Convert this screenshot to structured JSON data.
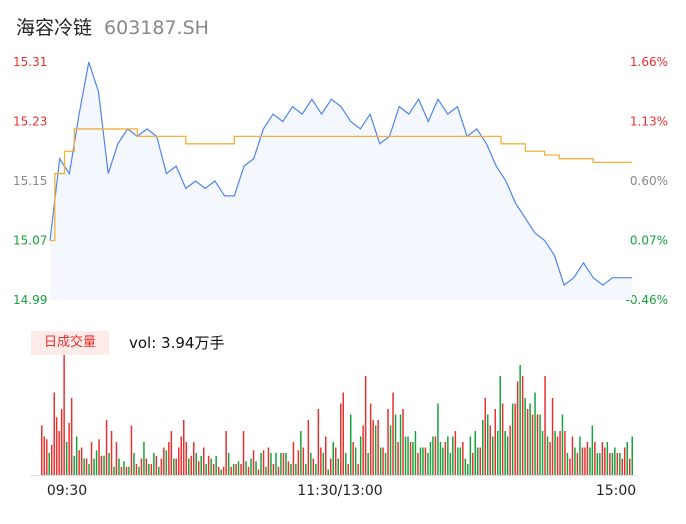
{
  "header": {
    "name": "海容冷链",
    "code": "603187.SH"
  },
  "volume_panel": {
    "tag": "日成交量",
    "vol_label": "vol: 3.94万手"
  },
  "colors": {
    "price_line": "#4f86e8",
    "avg_line": "#f4b13a",
    "up": "#e8312f",
    "down": "#16a23d",
    "neutral": "#888888"
  },
  "chart_data": [
    {
      "type": "line",
      "y_ticks_left": [
        "15.31",
        "15.23",
        "15.15",
        "15.07",
        "14.99"
      ],
      "y_ticks_right": [
        "1.66%",
        "1.13%",
        "0.60%",
        "0.07%",
        "-0.46%"
      ],
      "ylim": [
        14.99,
        15.31
      ],
      "prev_close": 15.06,
      "x_ticks": [
        "09:30",
        "11:30/13:00",
        "15:00"
      ],
      "series": [
        {
          "x": [
            0,
            4,
            8,
            12,
            16,
            20,
            24,
            28,
            32,
            36,
            40,
            44,
            48,
            52,
            56,
            60,
            64,
            68,
            72,
            76,
            80,
            84,
            88,
            92,
            96,
            100,
            104,
            108,
            112,
            116,
            120,
            124,
            128,
            132,
            136,
            140,
            144,
            148,
            152,
            156,
            160,
            164,
            168,
            172,
            176,
            180,
            184,
            188,
            192,
            196,
            200,
            204,
            208,
            212,
            216,
            220,
            224,
            228,
            232,
            236,
            240
          ],
          "values": [
            15.07,
            15.18,
            15.16,
            15.24,
            15.31,
            15.27,
            15.16,
            15.2,
            15.22,
            15.21,
            15.22,
            15.21,
            15.16,
            15.17,
            15.14,
            15.15,
            15.14,
            15.15,
            15.13,
            15.13,
            15.17,
            15.18,
            15.22,
            15.24,
            15.23,
            15.25,
            15.24,
            15.26,
            15.24,
            15.26,
            15.25,
            15.23,
            15.22,
            15.24,
            15.2,
            15.21,
            15.25,
            15.24,
            15.26,
            15.23,
            15.26,
            15.24,
            15.25,
            15.21,
            15.22,
            15.2,
            15.17,
            15.15,
            15.12,
            15.1,
            15.08,
            15.07,
            15.05,
            15.01,
            15.02,
            15.04,
            15.02,
            15.01,
            15.02,
            15.02,
            15.02
          ]
        },
        {
          "x": [
            0,
            2,
            6,
            10,
            16,
            36,
            56,
            76,
            96,
            116,
            136,
            156,
            176,
            186,
            196,
            204,
            210,
            224,
            240
          ],
          "values": [
            15.07,
            15.16,
            15.19,
            15.22,
            15.22,
            15.21,
            15.2,
            15.21,
            15.21,
            15.21,
            15.21,
            15.21,
            15.21,
            15.2,
            15.19,
            15.185,
            15.18,
            15.175,
            15.175
          ]
        }
      ]
    },
    {
      "type": "bar",
      "series": [
        {
          "values": [
            18,
            14,
            13,
            8,
            11,
            30,
            21,
            16,
            24,
            45,
            12,
            19,
            28,
            7,
            14,
            9,
            10,
            6,
            6,
            4,
            12,
            6,
            9,
            13,
            7,
            7,
            20,
            8,
            16,
            3,
            12,
            6,
            3,
            5,
            3,
            3,
            18,
            8,
            4,
            3,
            6,
            12,
            6,
            4,
            4,
            8,
            7,
            3,
            6,
            10,
            9,
            12,
            16,
            6,
            6,
            10,
            14,
            20,
            12,
            6,
            7,
            12,
            8,
            5,
            7,
            10,
            4,
            7,
            6,
            4,
            7,
            3,
            2,
            3,
            16,
            8,
            3,
            4,
            4,
            5,
            4,
            16,
            5,
            3,
            6,
            9,
            5,
            2,
            8,
            9,
            3,
            10,
            8,
            4,
            8,
            3,
            8,
            8,
            8,
            5,
            4,
            12,
            4,
            9,
            16,
            10,
            4,
            20,
            8,
            6,
            4,
            24,
            10,
            8,
            14,
            2,
            6,
            12,
            10,
            6,
            26,
            30,
            8,
            4,
            22,
            12,
            10,
            4,
            14,
            18,
            36,
            8,
            26,
            20,
            18,
            20,
            10,
            10,
            8,
            24,
            18,
            30,
            22,
            12,
            22,
            24,
            14,
            14,
            12,
            12,
            16,
            8,
            10,
            10,
            10,
            8,
            12,
            14,
            14,
            26,
            12,
            10,
            12,
            14,
            8,
            14,
            16,
            10,
            10,
            12,
            6,
            4,
            14,
            8,
            16,
            10,
            10,
            20,
            28,
            22,
            18,
            14,
            24,
            16,
            36,
            26,
            16,
            14,
            18,
            26,
            26,
            34,
            40,
            36,
            28,
            24,
            26,
            22,
            30,
            22,
            22,
            16,
            36,
            14,
            12,
            28,
            16,
            14,
            16,
            22,
            16,
            8,
            6,
            14,
            10,
            8,
            14,
            10,
            10,
            12,
            10,
            18,
            12,
            8,
            8,
            12,
            10,
            12,
            8,
            8,
            10,
            8,
            8,
            6,
            10,
            12,
            6,
            14
          ],
          "colors": [
            "up",
            "up",
            "up",
            "down",
            "up",
            "up",
            "up",
            "up",
            "up",
            "up",
            "down",
            "up",
            "up",
            "down",
            "down",
            "up",
            "up",
            "down",
            "up",
            "down",
            "up",
            "down",
            "down",
            "up",
            "up",
            "down",
            "up",
            "down",
            "up",
            "down",
            "up",
            "down",
            "up",
            "down",
            "up",
            "down",
            "up",
            "down",
            "up",
            "down",
            "up",
            "down",
            "up",
            "down",
            "up",
            "down",
            "up",
            "down",
            "up",
            "up",
            "down",
            "up",
            "up",
            "down",
            "up",
            "up",
            "up",
            "up",
            "up",
            "down",
            "up",
            "up",
            "down",
            "up",
            "down",
            "up",
            "down",
            "up",
            "down",
            "up",
            "down",
            "up",
            "down",
            "up",
            "up",
            "down",
            "up",
            "down",
            "up",
            "down",
            "up",
            "up",
            "down",
            "up",
            "down",
            "up",
            "down",
            "up",
            "down",
            "up",
            "down",
            "up",
            "down",
            "up",
            "down",
            "up",
            "down",
            "up",
            "down",
            "up",
            "down",
            "up",
            "down",
            "up",
            "down",
            "up",
            "down",
            "up",
            "down",
            "up",
            "down",
            "up",
            "up",
            "down",
            "up",
            "down",
            "up",
            "down",
            "up",
            "down",
            "up",
            "up",
            "down",
            "up",
            "down",
            "up",
            "down",
            "up",
            "down",
            "up",
            "up",
            "down",
            "up",
            "up",
            "down",
            "up",
            "down",
            "up",
            "down",
            "up",
            "down",
            "up",
            "down",
            "up",
            "down",
            "up",
            "down",
            "down",
            "up",
            "down",
            "down",
            "up",
            "down",
            "down",
            "up",
            "down",
            "down",
            "down",
            "up",
            "down",
            "down",
            "down",
            "up",
            "down",
            "down",
            "down",
            "up",
            "down",
            "down",
            "up",
            "down",
            "down",
            "down",
            "up",
            "down",
            "down",
            "up",
            "down",
            "up",
            "down",
            "up",
            "down",
            "up",
            "down",
            "down",
            "up",
            "down",
            "down",
            "up",
            "down",
            "up",
            "up",
            "down",
            "up",
            "down",
            "up",
            "down",
            "up",
            "down",
            "up",
            "down",
            "down",
            "up",
            "down",
            "up",
            "up",
            "down",
            "up",
            "up",
            "down",
            "up",
            "down",
            "up",
            "up",
            "down",
            "up",
            "down",
            "up",
            "up",
            "up",
            "down",
            "down",
            "up",
            "down",
            "down",
            "up",
            "up",
            "down",
            "up",
            "down",
            "down",
            "up",
            "down",
            "up",
            "up",
            "down",
            "up",
            "down",
            "up",
            "neutral"
          ]
        }
      ]
    }
  ]
}
